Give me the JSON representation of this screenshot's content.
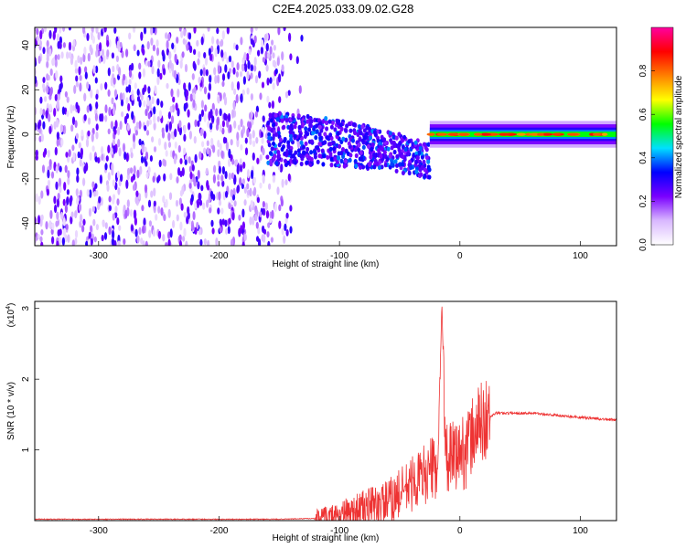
{
  "title": "C2E4.2025.033.09.02.G28",
  "chart_data": [
    {
      "type": "heatmap",
      "xlabel": "Height of straight line (km)",
      "ylabel": "Frequency (Hz)",
      "xlim": [
        -353,
        130
      ],
      "ylim": [
        -50,
        48
      ],
      "x_ticks": [
        -300,
        -200,
        -100,
        0,
        100
      ],
      "y_ticks": [
        -40,
        -20,
        0,
        20,
        40
      ],
      "colorbar": {
        "label": "Normalized spectral amplitude",
        "range": [
          0,
          1
        ],
        "ticks": [
          "0.0",
          "0.2",
          "0.4",
          "0.6",
          "0.8"
        ],
        "tick_values": [
          0.0,
          0.2,
          0.4,
          0.6,
          0.8
        ],
        "colors": [
          "#ffffff",
          "#d9b8ff",
          "#7a00ff",
          "#0000ff",
          "#00e0ff",
          "#00ff00",
          "#ffff00",
          "#ff8000",
          "#ff0000",
          "#ff00a0"
        ]
      },
      "regions": [
        {
          "name": "noise",
          "x": [
            -353,
            -130
          ],
          "y": [
            -50,
            48
          ],
          "level": 0.15
        },
        {
          "name": "transition",
          "x": [
            -160,
            -25
          ],
          "y_center": [
            -2,
            -12
          ],
          "spread_hz": [
            12,
            8
          ],
          "level": 0.3
        },
        {
          "name": "tone",
          "x": [
            -25,
            130
          ],
          "y_center": 0,
          "spread_hz": 3,
          "level": 0.9
        }
      ]
    },
    {
      "type": "line",
      "xlabel": "Height of straight line (km)",
      "ylabel": "SNR (10 * v/v)",
      "y_multiplier": "(x10",
      "y_exponent": "4",
      "y_multiplier_close": ")",
      "xlim": [
        -353,
        130
      ],
      "ylim": [
        0,
        3.1
      ],
      "x_ticks": [
        -300,
        -200,
        -100,
        0,
        100
      ],
      "y_ticks": [
        1,
        2,
        3
      ],
      "color": "#ee3333",
      "series_profile": [
        {
          "x": -353,
          "y": 0.02
        },
        {
          "x": -150,
          "y": 0.02
        },
        {
          "x": -120,
          "y": 0.03
        },
        {
          "x": -100,
          "y": 0.08
        },
        {
          "x": -80,
          "y": 0.18
        },
        {
          "x": -60,
          "y": 0.25
        },
        {
          "x": -45,
          "y": 0.45
        },
        {
          "x": -30,
          "y": 0.65
        },
        {
          "x": -18,
          "y": 0.8
        },
        {
          "x": -15,
          "y": 3.1
        },
        {
          "x": -12,
          "y": 0.85
        },
        {
          "x": -5,
          "y": 0.9
        },
        {
          "x": 5,
          "y": 1.0
        },
        {
          "x": 15,
          "y": 1.35
        },
        {
          "x": 30,
          "y": 1.52
        },
        {
          "x": 60,
          "y": 1.52
        },
        {
          "x": 100,
          "y": 1.46
        },
        {
          "x": 130,
          "y": 1.42
        }
      ]
    }
  ]
}
